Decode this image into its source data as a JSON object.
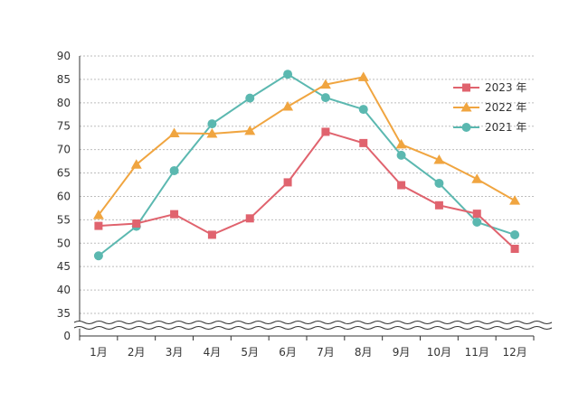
{
  "chart_data": {
    "type": "line",
    "categories": [
      "1月",
      "2月",
      "3月",
      "4月",
      "5月",
      "6月",
      "7月",
      "8月",
      "9月",
      "10月",
      "11月",
      "12月"
    ],
    "y_ticks": [
      "0",
      "35",
      "40",
      "45",
      "50",
      "55",
      "60",
      "65",
      "70",
      "75",
      "80",
      "85",
      "90"
    ],
    "ylim": [
      30,
      90
    ],
    "axis_break": true,
    "grid": true,
    "legend_position": "right",
    "series": [
      {
        "name": "2023 年",
        "marker": "square",
        "color": "#e0636e",
        "values": [
          53.7,
          54.2,
          56.2,
          51.8,
          55.3,
          63.0,
          73.8,
          71.4,
          62.4,
          58.1,
          56.3,
          48.8
        ]
      },
      {
        "name": "2022 年",
        "marker": "triangle",
        "color": "#f0a540",
        "values": [
          56.0,
          66.8,
          73.5,
          73.4,
          74.0,
          79.2,
          83.9,
          85.5,
          71.1,
          67.8,
          63.7,
          59.1
        ]
      },
      {
        "name": "2021 年",
        "marker": "circle",
        "color": "#5bb8b0",
        "values": [
          47.3,
          53.6,
          65.5,
          75.5,
          81.0,
          86.1,
          81.1,
          78.6,
          68.8,
          62.8,
          54.5,
          51.8
        ]
      }
    ]
  }
}
